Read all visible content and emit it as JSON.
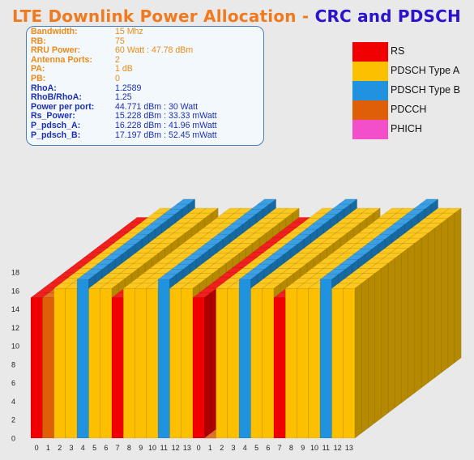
{
  "title": {
    "part1": "LTE Downlink Power Allocation -",
    "part2": "CRC and PDSCH"
  },
  "params": [
    {
      "key": "Bandwidth:",
      "value": "15 Mhz",
      "tone": "orange"
    },
    {
      "key": "RB:",
      "value": "75",
      "tone": "orange"
    },
    {
      "key": "RRU Power:",
      "value": "60 Watt : 47.78 dBm",
      "tone": "orange"
    },
    {
      "key": "Antenna Ports:",
      "value": "2",
      "tone": "orange"
    },
    {
      "key": "PA:",
      "value": "1 dB",
      "tone": "orange"
    },
    {
      "key": "PB:",
      "value": "0",
      "tone": "orange"
    },
    {
      "key": "RhoA:",
      "value": "1.2589",
      "tone": "blue"
    },
    {
      "key": "RhoB/RhoA:",
      "value": "1.25",
      "tone": "blue"
    },
    {
      "key": "Power per port:",
      "value": "44.771 dBm : 30 Watt",
      "tone": "blue"
    },
    {
      "key": "Rs_Power:",
      "value": "15.228 dBm : 33.33 mWatt",
      "tone": "blue"
    },
    {
      "key": "P_pdsch_A:",
      "value": "16.228 dBm : 41.96 mWatt",
      "tone": "blue"
    },
    {
      "key": "P_pdsch_B:",
      "value": "17.197 dBm : 52.45 mWatt",
      "tone": "blue"
    }
  ],
  "legend": [
    {
      "label": "RS",
      "color": "#f00000"
    },
    {
      "label": "PDSCH Type A",
      "color": "#fcc000"
    },
    {
      "label": "PDSCH Type B",
      "color": "#1f92e0"
    },
    {
      "label": "PDCCH",
      "color": "#df5e08"
    },
    {
      "label": "PHICH",
      "color": "#f44fca"
    }
  ],
  "colors": {
    "rs": "#f00000",
    "pdsch_a": "#fcc000",
    "pdsch_b": "#1f92e0",
    "pdcch": "#df5e08",
    "phich": "#f44fca"
  },
  "chart_data": {
    "type": "bar",
    "style": "3d-stacked-resource-grid",
    "ylim": [
      0,
      18
    ],
    "yticks": [
      "0",
      "2",
      "4",
      "6",
      "8",
      "10",
      "12",
      "14",
      "16",
      "18"
    ],
    "categories": [
      "0",
      "1",
      "2",
      "3",
      "4",
      "5",
      "6",
      "7",
      "8",
      "9",
      "10",
      "11",
      "12",
      "13",
      "0",
      "1",
      "2",
      "3",
      "4",
      "5",
      "6",
      "7",
      "8",
      "9",
      "10",
      "11",
      "12",
      "13"
    ],
    "series": [
      {
        "name": "RS",
        "values": [
          15.228,
          0,
          0,
          0,
          0,
          0,
          0,
          15.228,
          0,
          0,
          0,
          0,
          0,
          0,
          15.228,
          0,
          0,
          0,
          0,
          0,
          0,
          15.228,
          0,
          0,
          0,
          0,
          0,
          0
        ]
      },
      {
        "name": "PDSCH Type A",
        "values": [
          0,
          0,
          16.228,
          16.228,
          0,
          16.228,
          16.228,
          0,
          16.228,
          16.228,
          16.228,
          0,
          16.228,
          16.228,
          0,
          16.228,
          16.228,
          16.228,
          0,
          16.228,
          16.228,
          0,
          16.228,
          16.228,
          16.228,
          0,
          16.228,
          16.228
        ]
      },
      {
        "name": "PDSCH Type B",
        "values": [
          0,
          0,
          0,
          0,
          17.197,
          0,
          0,
          0,
          0,
          0,
          0,
          17.197,
          0,
          0,
          0,
          0,
          0,
          0,
          17.197,
          0,
          0,
          0,
          0,
          0,
          0,
          17.197,
          0,
          0
        ]
      },
      {
        "name": "PDCCH",
        "values": [
          0,
          15.228,
          0,
          0,
          0,
          0,
          0,
          0,
          0,
          0,
          0,
          0,
          0,
          0,
          0,
          0,
          0,
          0,
          0,
          0,
          0,
          0,
          0,
          0,
          0,
          0,
          0,
          0
        ]
      }
    ]
  }
}
